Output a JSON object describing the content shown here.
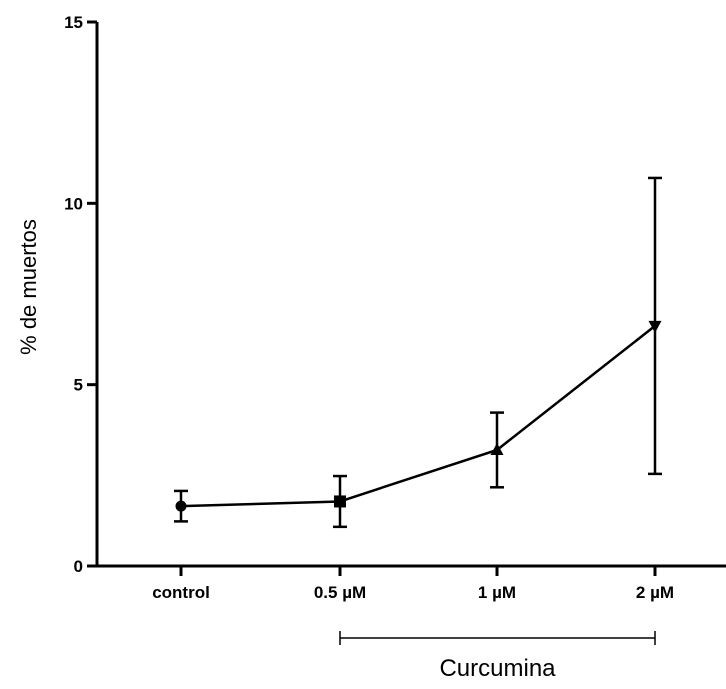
{
  "chart_data": {
    "type": "line",
    "title": "",
    "xlabel": "",
    "ylabel": "% de muertos",
    "categories": [
      "control",
      "0.5 µM",
      "1 µM",
      "2 µM"
    ],
    "series": [
      {
        "values": [
          1.65,
          1.78,
          3.2,
          6.62
        ],
        "error": [
          0.42,
          0.7,
          1.03,
          4.08
        ],
        "markers": [
          "circle",
          "square",
          "triangle-up",
          "triangle-down"
        ],
        "color": "#000000"
      }
    ],
    "ylim": [
      0,
      15
    ],
    "yticks": [
      0,
      5,
      10,
      15
    ],
    "ytick_labels": [
      "0",
      "5",
      "10",
      "15"
    ],
    "grid": false,
    "group_bracket": {
      "label": "Curcumina",
      "span": [
        "0.5 µM",
        "2 µM"
      ]
    }
  }
}
